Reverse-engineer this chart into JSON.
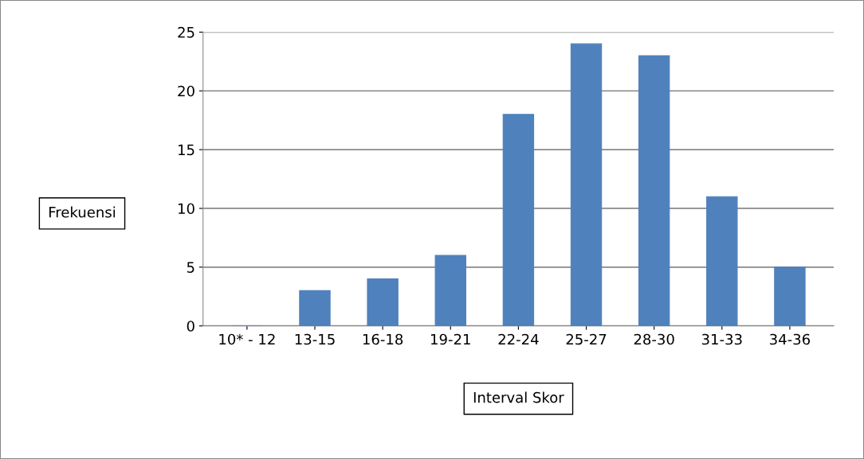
{
  "chart_data": {
    "type": "bar",
    "categories": [
      "10* - 12",
      "13-15",
      "16-18",
      "19-21",
      "22-24",
      "25-27",
      "28-30",
      "31-33",
      "34-36"
    ],
    "values": [
      0,
      3,
      4,
      6,
      18,
      24,
      23,
      11,
      5
    ],
    "color": "#4f81bd",
    "xlabel": "Interval Skor",
    "ylabel": "Frekuensi",
    "ylim": [
      0,
      25
    ],
    "yticks": [
      0,
      5,
      10,
      15,
      20,
      25
    ],
    "grid": "y",
    "legend": false
  }
}
